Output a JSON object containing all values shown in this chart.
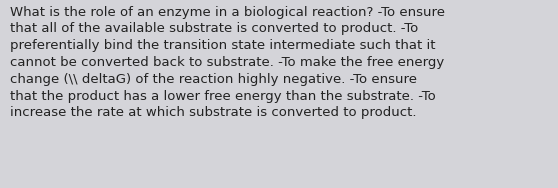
{
  "line1": "What is the role of an enzyme in a biological reaction? -To ensure",
  "line2": "that all of the available substrate is converted to product. -To",
  "line3": "preferentially bind the transition state intermediate such that it",
  "line4": "cannot be converted back to substrate. -To make the free energy",
  "line5": "change (\\\\ deltaG) of the reaction highly negative. -To ensure",
  "line6": "that the product has a lower free energy than the substrate. -To",
  "line7": "increase the rate at which substrate is converted to product.",
  "background_color": "#d4d4d9",
  "text_color": "#222222",
  "font_size": 9.5,
  "fig_width": 5.58,
  "fig_height": 1.88,
  "dpi": 100
}
